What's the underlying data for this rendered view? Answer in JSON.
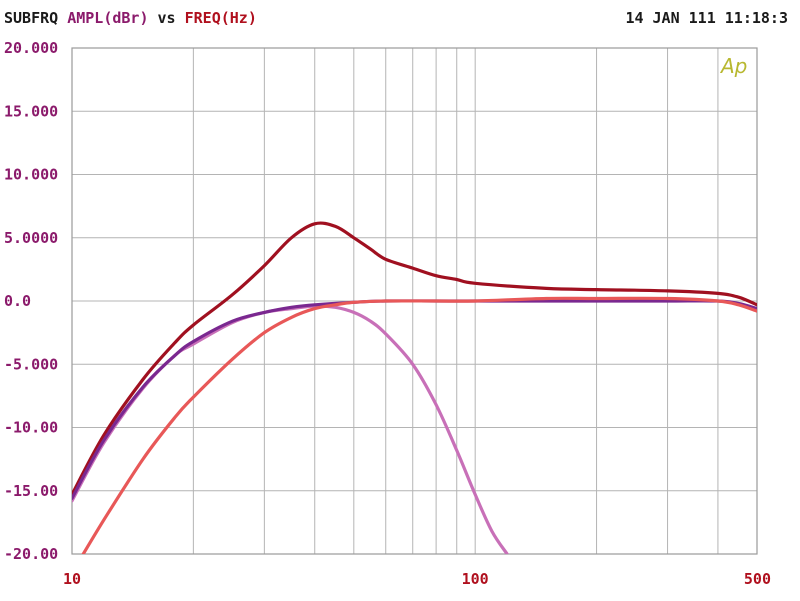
{
  "header": {
    "program": "SUBFRQ",
    "y_quantity": "AMPL(dBr)",
    "vs": "vs",
    "x_quantity": "FREQ(Hz)",
    "timestamp": "14 JAN 111 11:18:3",
    "logo": "Ap"
  },
  "colors": {
    "frame": "#9a9a9a",
    "grid": "#b4b4b4",
    "y_text": "#8b1a6b",
    "x_text": "#b0101e",
    "program_text": "#1a1a1a",
    "logo": "#b8b830"
  },
  "chart_data": {
    "type": "line",
    "xscale": "log",
    "xlim": [
      10,
      500
    ],
    "ylim": [
      -20,
      20
    ],
    "x_tick_labels": [
      {
        "value": 10,
        "label": "10"
      },
      {
        "value": 100,
        "label": "100"
      },
      {
        "value": 500,
        "label": "500"
      }
    ],
    "x_gridlines": [
      20,
      30,
      40,
      50,
      60,
      70,
      80,
      90,
      100,
      200,
      300,
      400
    ],
    "y_ticks": [
      {
        "value": 20,
        "label": "20.000"
      },
      {
        "value": 15,
        "label": "15.000"
      },
      {
        "value": 10,
        "label": "10.000"
      },
      {
        "value": 5,
        "label": "5.0000"
      },
      {
        "value": 0,
        "label": "0.0"
      },
      {
        "value": -5,
        "label": "-5.000"
      },
      {
        "value": -10,
        "label": "-10.00"
      },
      {
        "value": -15,
        "label": "-15.00"
      },
      {
        "value": -20,
        "label": "-20.00"
      }
    ],
    "grid": true,
    "series": [
      {
        "color": "#c870b8",
        "x": [
          10,
          12,
          15,
          18,
          20,
          25,
          30,
          35,
          40,
          45,
          50,
          55,
          60,
          70,
          80,
          90,
          100,
          110,
          120
        ],
        "y": [
          -15.8,
          -11.2,
          -6.9,
          -4.3,
          -3.4,
          -1.7,
          -0.9,
          -0.6,
          -0.4,
          -0.5,
          -0.9,
          -1.6,
          -2.6,
          -5.0,
          -8.2,
          -11.8,
          -15.3,
          -18.2,
          -20.0
        ]
      },
      {
        "color": "#a01020",
        "x": [
          10,
          12,
          15,
          18,
          20,
          25,
          30,
          35,
          40,
          45,
          50,
          55,
          60,
          70,
          80,
          90,
          100,
          150,
          200,
          300,
          400,
          450,
          500
        ],
        "y": [
          -15.3,
          -10.6,
          -6.2,
          -3.3,
          -1.9,
          0.5,
          2.8,
          5.0,
          6.1,
          5.9,
          5.0,
          4.1,
          3.3,
          2.6,
          2.0,
          1.7,
          1.4,
          1.0,
          0.9,
          0.8,
          0.6,
          0.3,
          -0.3
        ]
      },
      {
        "color": "#7a2890",
        "x": [
          10,
          12,
          15,
          18,
          20,
          25,
          30,
          35,
          40,
          50,
          60,
          80,
          100,
          150,
          200,
          300,
          400,
          450,
          500
        ],
        "y": [
          -15.6,
          -11.0,
          -6.8,
          -4.3,
          -3.2,
          -1.6,
          -0.9,
          -0.5,
          -0.3,
          -0.1,
          0.0,
          0.0,
          0.0,
          0.0,
          0.0,
          0.0,
          0.0,
          -0.2,
          -0.6
        ]
      },
      {
        "color": "#e85858",
        "x": [
          10,
          12,
          15,
          18,
          20,
          25,
          30,
          35,
          40,
          45,
          50,
          60,
          80,
          100,
          150,
          200,
          300,
          400,
          450,
          500
        ],
        "y": [
          -21.5,
          -17.3,
          -12.5,
          -9.2,
          -7.6,
          -4.6,
          -2.5,
          -1.3,
          -0.6,
          -0.3,
          -0.1,
          0.0,
          0.0,
          0.0,
          0.2,
          0.2,
          0.2,
          0.0,
          -0.3,
          -0.8
        ]
      }
    ]
  }
}
